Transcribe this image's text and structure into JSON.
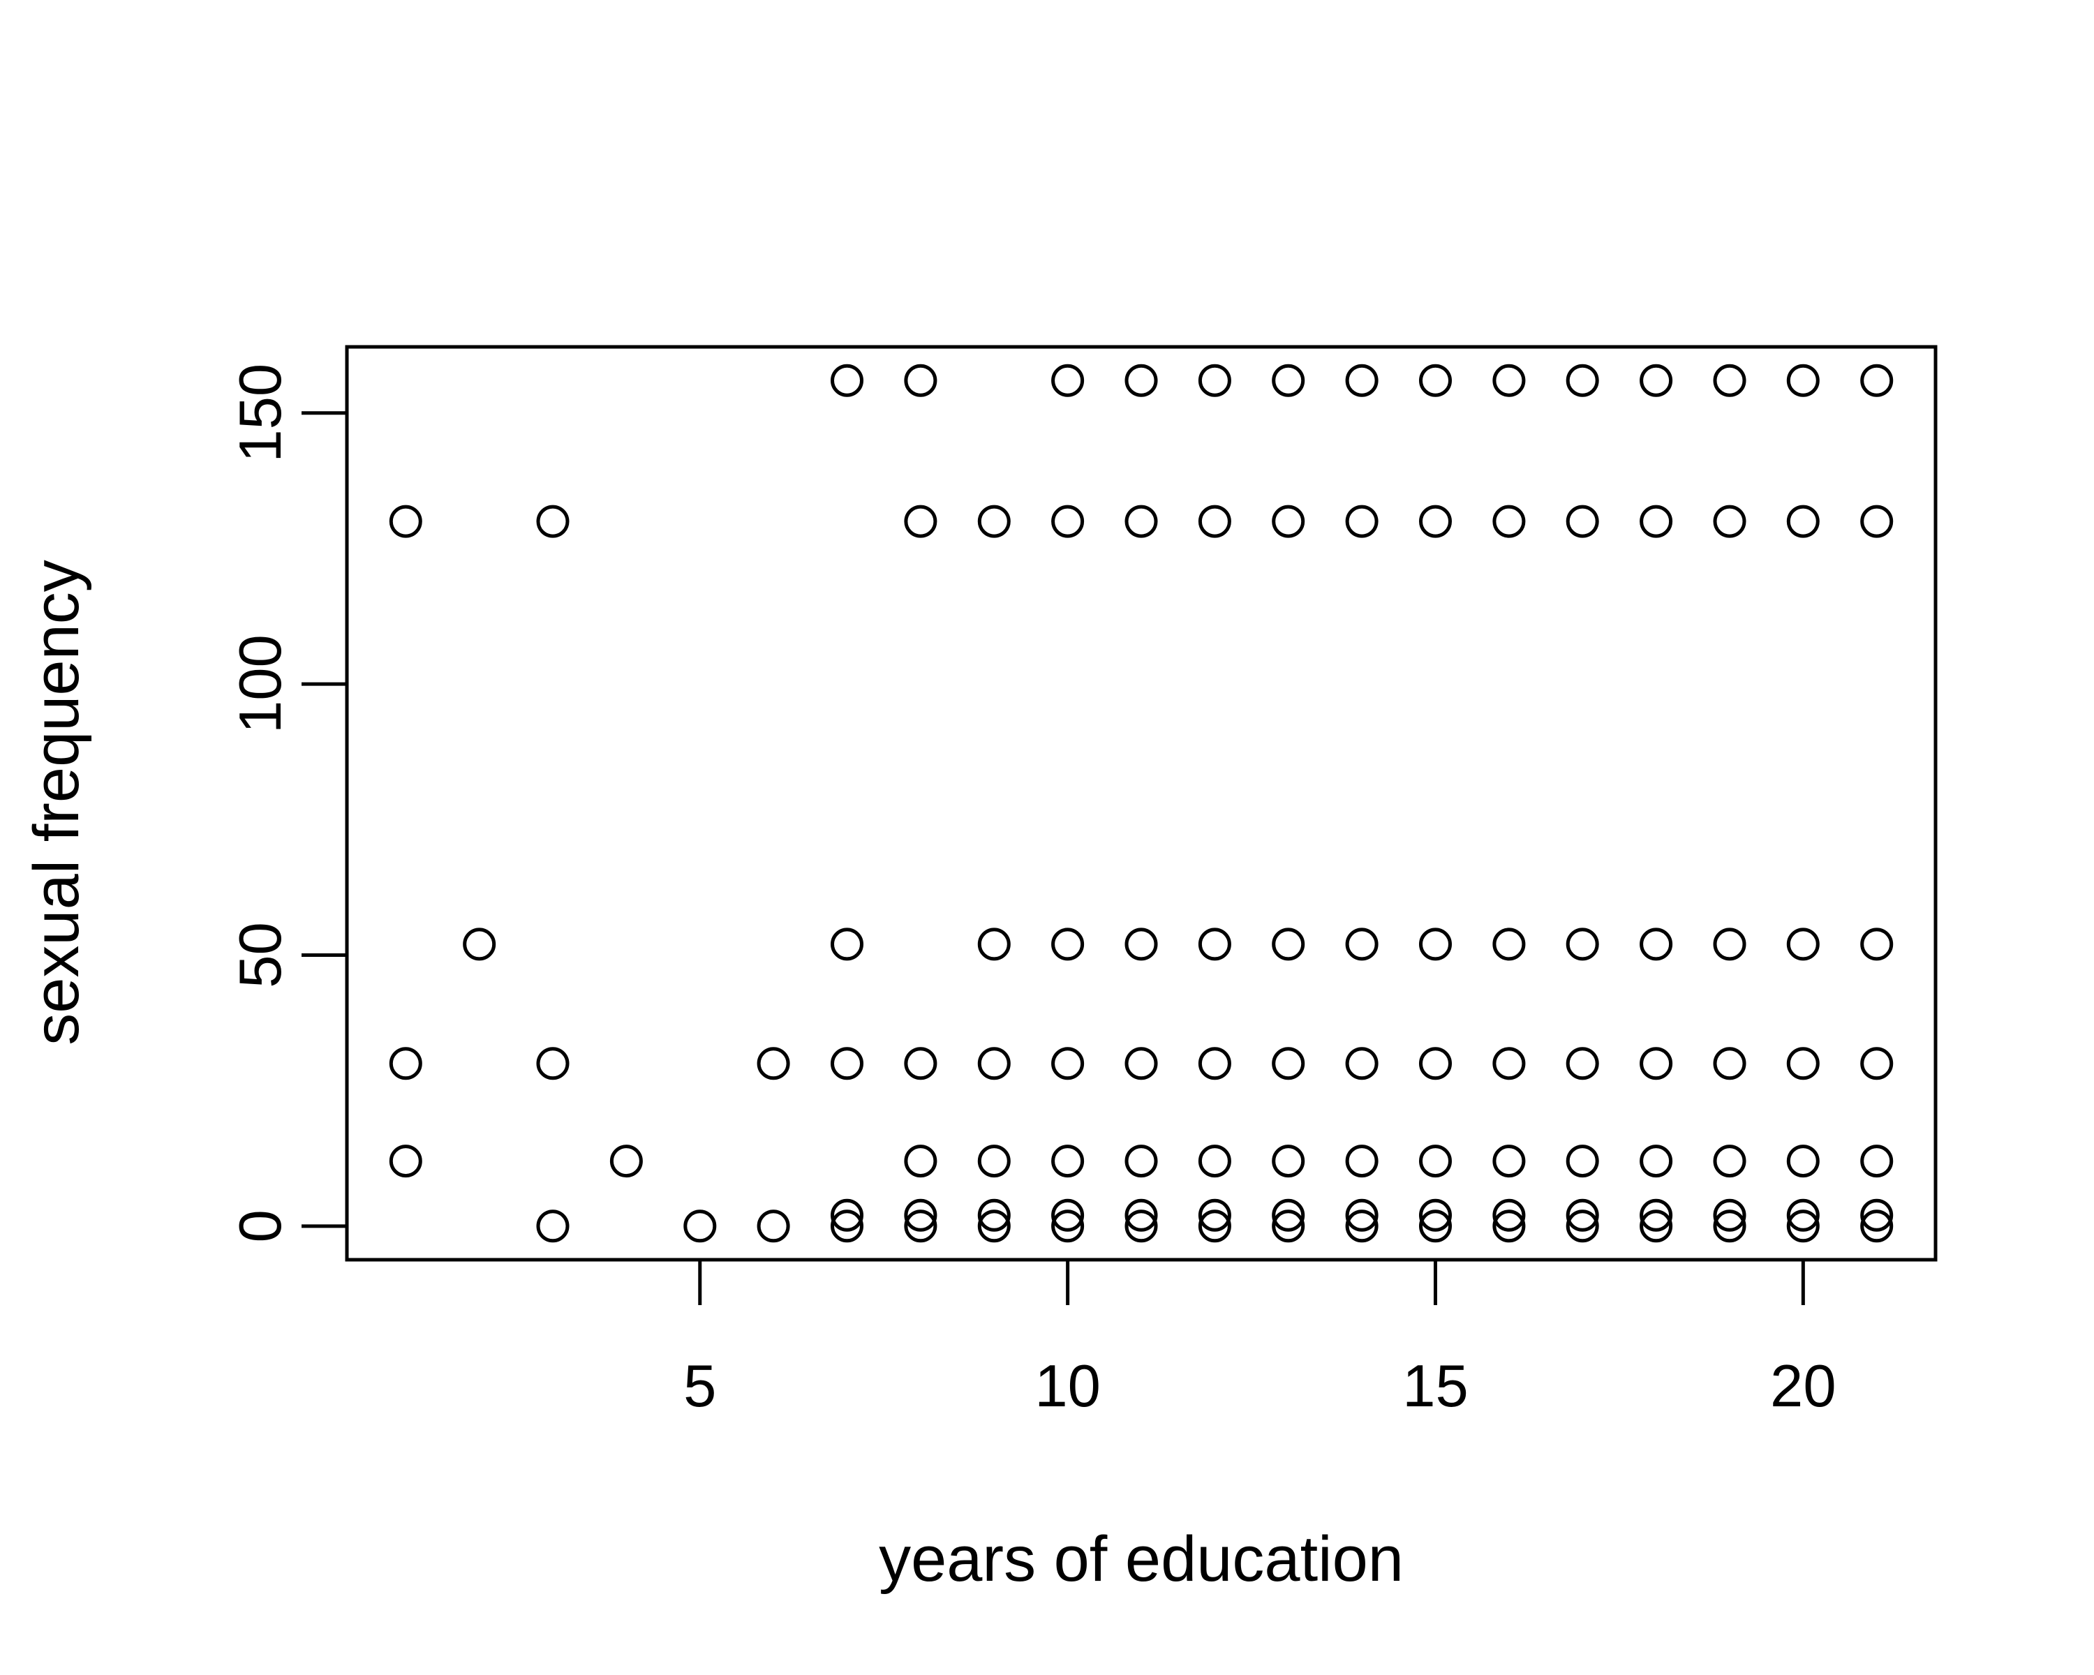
{
  "chart_data": {
    "type": "scatter",
    "xlabel": "years of education",
    "ylabel": "sexual frequency",
    "xlim": [
      0.2,
      21.8
    ],
    "ylim": [
      -6.2,
      162.2
    ],
    "x_ticks": [
      5,
      10,
      15,
      20
    ],
    "y_ticks": [
      0,
      50,
      100,
      150
    ],
    "grid": false,
    "marker": "open-circle",
    "color": "#000000",
    "points": [
      [
        1,
        130
      ],
      [
        1,
        30
      ],
      [
        1,
        12
      ],
      [
        2,
        52
      ],
      [
        3,
        130
      ],
      [
        3,
        30
      ],
      [
        3,
        0
      ],
      [
        4,
        12
      ],
      [
        5,
        0
      ],
      [
        6,
        30
      ],
      [
        6,
        0
      ],
      [
        7,
        156
      ],
      [
        7,
        52
      ],
      [
        7,
        30
      ],
      [
        7,
        2
      ],
      [
        7,
        0
      ],
      [
        8,
        156
      ],
      [
        8,
        130
      ],
      [
        8,
        30
      ],
      [
        8,
        12
      ],
      [
        8,
        2
      ],
      [
        8,
        0
      ],
      [
        9,
        130
      ],
      [
        9,
        52
      ],
      [
        9,
        30
      ],
      [
        9,
        12
      ],
      [
        9,
        2
      ],
      [
        9,
        0
      ],
      [
        10,
        156
      ],
      [
        10,
        130
      ],
      [
        10,
        52
      ],
      [
        10,
        30
      ],
      [
        10,
        12
      ],
      [
        10,
        2
      ],
      [
        10,
        0
      ],
      [
        11,
        156
      ],
      [
        11,
        130
      ],
      [
        11,
        52
      ],
      [
        11,
        30
      ],
      [
        11,
        12
      ],
      [
        11,
        2
      ],
      [
        11,
        0
      ],
      [
        12,
        156
      ],
      [
        12,
        130
      ],
      [
        12,
        52
      ],
      [
        12,
        30
      ],
      [
        12,
        12
      ],
      [
        12,
        2
      ],
      [
        12,
        0
      ],
      [
        13,
        156
      ],
      [
        13,
        130
      ],
      [
        13,
        52
      ],
      [
        13,
        30
      ],
      [
        13,
        12
      ],
      [
        13,
        2
      ],
      [
        13,
        0
      ],
      [
        14,
        156
      ],
      [
        14,
        130
      ],
      [
        14,
        52
      ],
      [
        14,
        30
      ],
      [
        14,
        12
      ],
      [
        14,
        2
      ],
      [
        14,
        0
      ],
      [
        15,
        156
      ],
      [
        15,
        130
      ],
      [
        15,
        52
      ],
      [
        15,
        30
      ],
      [
        15,
        12
      ],
      [
        15,
        2
      ],
      [
        15,
        0
      ],
      [
        16,
        156
      ],
      [
        16,
        130
      ],
      [
        16,
        52
      ],
      [
        16,
        30
      ],
      [
        16,
        12
      ],
      [
        16,
        2
      ],
      [
        16,
        0
      ],
      [
        17,
        156
      ],
      [
        17,
        130
      ],
      [
        17,
        52
      ],
      [
        17,
        30
      ],
      [
        17,
        12
      ],
      [
        17,
        2
      ],
      [
        17,
        0
      ],
      [
        18,
        156
      ],
      [
        18,
        130
      ],
      [
        18,
        52
      ],
      [
        18,
        30
      ],
      [
        18,
        12
      ],
      [
        18,
        2
      ],
      [
        18,
        0
      ],
      [
        19,
        156
      ],
      [
        19,
        130
      ],
      [
        19,
        52
      ],
      [
        19,
        30
      ],
      [
        19,
        12
      ],
      [
        19,
        2
      ],
      [
        19,
        0
      ],
      [
        20,
        156
      ],
      [
        20,
        130
      ],
      [
        20,
        52
      ],
      [
        20,
        30
      ],
      [
        20,
        12
      ],
      [
        20,
        2
      ],
      [
        20,
        0
      ],
      [
        21,
        156
      ],
      [
        21,
        130
      ],
      [
        21,
        52
      ],
      [
        21,
        30
      ],
      [
        21,
        12
      ],
      [
        21,
        2
      ],
      [
        21,
        0
      ]
    ]
  }
}
